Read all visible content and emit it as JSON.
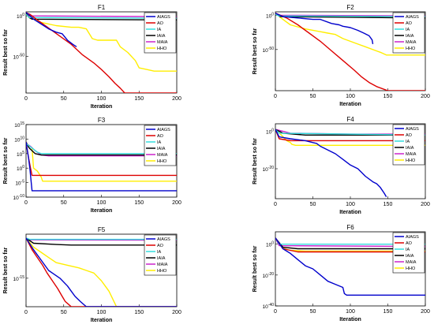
{
  "figure": {
    "ylabel": "Result best so far",
    "xlabel": "Iteration"
  },
  "series_styles": [
    {
      "name": "AIAGS",
      "color": "#0000cc"
    },
    {
      "name": "AO",
      "color": "#dd0000"
    },
    {
      "name": "IA",
      "color": "#33dddd"
    },
    {
      "name": "IAIA",
      "color": "#000000"
    },
    {
      "name": "MAIA",
      "color": "#cc22cc"
    },
    {
      "name": "HHO",
      "color": "#ffee00"
    }
  ],
  "chart_data": [
    {
      "type": "line",
      "title": "F1",
      "xlabel": "Iteration",
      "ylabel": "Result best so far",
      "xlim": [
        0,
        200
      ],
      "xticks": [
        0,
        50,
        100,
        150,
        200
      ],
      "yscale": "log",
      "ylim_exp": [
        -95,
        5
      ],
      "yticks": [
        {
          "exp": 0,
          "label": "10",
          "sup": "0"
        },
        {
          "exp": -50,
          "label": "10",
          "sup": "-50"
        }
      ],
      "legend": "top-right",
      "series": [
        {
          "name": "AIAGS",
          "x": [
            0,
            3,
            10,
            20,
            30,
            40,
            48,
            55,
            62,
            67
          ],
          "y": [
            4,
            2,
            -4,
            -10,
            -16,
            -20,
            -22,
            -30,
            -35,
            -38
          ]
        },
        {
          "name": "AO",
          "x": [
            0,
            5,
            15,
            30,
            45,
            60,
            75,
            90,
            100,
            110,
            118,
            125,
            131,
            200
          ],
          "y": [
            4,
            2,
            -5,
            -15,
            -25,
            -35,
            -48,
            -58,
            -66,
            -75,
            -83,
            -89,
            -95,
            -95
          ]
        },
        {
          "name": "IA",
          "x": [
            0,
            4,
            200
          ],
          "y": [
            2,
            -2,
            -3
          ]
        },
        {
          "name": "IAIA",
          "x": [
            0,
            4,
            8,
            200
          ],
          "y": [
            3,
            -2,
            -4,
            -5
          ]
        },
        {
          "name": "MAIA",
          "x": [
            0,
            3,
            200
          ],
          "y": [
            2,
            0,
            -1
          ]
        },
        {
          "name": "HHO",
          "x": [
            0,
            5,
            20,
            40,
            60,
            70,
            80,
            88,
            95,
            120,
            125,
            135,
            145,
            150,
            160,
            170,
            200
          ],
          "y": [
            4,
            -2,
            -8,
            -12,
            -14,
            -14,
            -16,
            -28,
            -30,
            -30,
            -38,
            -45,
            -55,
            -64,
            -66,
            -68,
            -68
          ]
        }
      ]
    },
    {
      "type": "line",
      "title": "F2",
      "xlabel": "Iteration",
      "ylabel": "Result best so far",
      "xlim": [
        0,
        200
      ],
      "xticks": [
        0,
        50,
        100,
        150,
        200
      ],
      "yscale": "log",
      "ylim_exp": [
        -110,
        5
      ],
      "yticks": [
        {
          "exp": 0,
          "label": "10",
          "sup": "0"
        },
        {
          "exp": -50,
          "label": "10",
          "sup": "-50"
        }
      ],
      "legend": "top-right",
      "series": [
        {
          "name": "AIAGS",
          "x": [
            0,
            10,
            30,
            50,
            60,
            75,
            85,
            90,
            100,
            110,
            118,
            125,
            129,
            130
          ],
          "y": [
            3,
            -2,
            -4,
            -6,
            -6,
            -12,
            -14,
            -16,
            -18,
            -22,
            -26,
            -30,
            -36,
            -42
          ]
        },
        {
          "name": "AO",
          "x": [
            0,
            15,
            30,
            45,
            60,
            75,
            90,
            105,
            115,
            125,
            135,
            150,
            200
          ],
          "y": [
            3,
            -4,
            -14,
            -26,
            -38,
            -52,
            -66,
            -80,
            -90,
            -98,
            -104,
            -110,
            -110
          ]
        },
        {
          "name": "IA",
          "x": [
            0,
            4,
            200
          ],
          "y": [
            2,
            -1,
            -2
          ]
        },
        {
          "name": "IAIA",
          "x": [
            0,
            6,
            200
          ],
          "y": [
            3,
            -2,
            -4
          ]
        },
        {
          "name": "MAIA",
          "x": [
            0,
            3,
            200
          ],
          "y": [
            2,
            0,
            -1
          ]
        },
        {
          "name": "HHO",
          "x": [
            0,
            10,
            20,
            40,
            60,
            70,
            80,
            90,
            100,
            110,
            120,
            135,
            140,
            148,
            200
          ],
          "y": [
            3,
            -6,
            -14,
            -20,
            -24,
            -26,
            -28,
            -34,
            -38,
            -42,
            -46,
            -52,
            -54,
            -58,
            -58
          ]
        }
      ]
    },
    {
      "type": "line",
      "title": "F3",
      "xlabel": "Iteration",
      "ylabel": "Result best so far",
      "xlim": [
        0,
        200
      ],
      "xticks": [
        0,
        50,
        100,
        150,
        200
      ],
      "yscale": "log",
      "ylim_exp": [
        -10,
        15
      ],
      "yticks": [
        {
          "exp": 15,
          "label": "10",
          "sup": "15"
        },
        {
          "exp": 10,
          "label": "10",
          "sup": "10"
        },
        {
          "exp": 5,
          "label": "10",
          "sup": "5"
        },
        {
          "exp": 0,
          "label": "10",
          "sup": "0"
        },
        {
          "exp": -5,
          "label": "10",
          "sup": "-5"
        },
        {
          "exp": -10,
          "label": "10",
          "sup": "-10"
        }
      ],
      "legend": "top-right",
      "series": [
        {
          "name": "AIAGS",
          "x": [
            0,
            3,
            5,
            8,
            200
          ],
          "y": [
            9,
            4,
            0,
            -7.8,
            -7.8
          ]
        },
        {
          "name": "AO",
          "x": [
            0,
            3,
            6,
            8,
            200
          ],
          "y": [
            9,
            4,
            0,
            -2.5,
            -2.5
          ]
        },
        {
          "name": "IA",
          "x": [
            0,
            5,
            10,
            15,
            20,
            200
          ],
          "y": [
            8.5,
            7.5,
            6.5,
            5.5,
            5,
            5
          ]
        },
        {
          "name": "IAIA",
          "x": [
            0,
            4,
            8,
            12,
            20,
            200
          ],
          "y": [
            9,
            7,
            6,
            5,
            4.5,
            4.5
          ]
        },
        {
          "name": "MAIA",
          "x": [
            0,
            6,
            12,
            20,
            30,
            200
          ],
          "y": [
            8.5,
            7.5,
            6,
            4.5,
            4.2,
            4.2
          ]
        },
        {
          "name": "HHO",
          "x": [
            0,
            8,
            10,
            15,
            20,
            22,
            200
          ],
          "y": [
            8.5,
            7,
            0,
            -1,
            -3,
            -4.5,
            -4.5
          ]
        }
      ]
    },
    {
      "type": "line",
      "title": "F4",
      "xlabel": "Iteration",
      "ylabel": "Result best so far",
      "xlim": [
        0,
        200
      ],
      "xticks": [
        0,
        50,
        100,
        150,
        200
      ],
      "yscale": "log",
      "ylim_exp": [
        -36,
        4
      ],
      "yticks": [
        {
          "exp": 0,
          "label": "10",
          "sup": "0"
        },
        {
          "exp": -20,
          "label": "10",
          "sup": "-20"
        }
      ],
      "legend": "top-right",
      "series": [
        {
          "name": "AIAGS",
          "x": [
            0,
            5,
            20,
            40,
            50,
            55,
            60,
            70,
            80,
            90,
            100,
            110,
            115,
            120,
            130,
            135,
            140,
            145,
            148
          ],
          "y": [
            1,
            -3,
            -4,
            -5,
            -6,
            -6.5,
            -8,
            -10,
            -12,
            -15,
            -18,
            -20,
            -22,
            -24,
            -27,
            -28,
            -30,
            -33,
            -35
          ]
        },
        {
          "name": "AO",
          "x": [
            0,
            5,
            20,
            200
          ],
          "y": [
            1,
            -4,
            -5,
            -5
          ]
        },
        {
          "name": "IA",
          "x": [
            0,
            5,
            200
          ],
          "y": [
            1,
            -1,
            -2
          ]
        },
        {
          "name": "IAIA",
          "x": [
            0,
            10,
            40,
            200
          ],
          "y": [
            1,
            -1,
            -2,
            -2
          ]
        },
        {
          "name": "MAIA",
          "x": [
            0,
            20,
            100,
            200
          ],
          "y": [
            1,
            -1,
            -1.5,
            -1.5
          ]
        },
        {
          "name": "HHO",
          "x": [
            0,
            8,
            15,
            20,
            22,
            27,
            200
          ],
          "y": [
            1,
            -2,
            -5,
            -6,
            -7,
            -7.5,
            -7.5
          ]
        }
      ]
    },
    {
      "type": "line",
      "title": "F5",
      "xlabel": "Iteration",
      "ylabel": "Result best so far",
      "xlim": [
        0,
        200
      ],
      "xticks": [
        0,
        50,
        100,
        150,
        200
      ],
      "yscale": "log",
      "ylim_exp": [
        -26,
        2
      ],
      "yticks": [
        {
          "exp": -15,
          "label": "10",
          "sup": "-15"
        }
      ],
      "legend": "top-right",
      "series": [
        {
          "name": "AIAGS",
          "x": [
            0,
            10,
            20,
            30,
            35,
            45,
            55,
            60,
            65,
            72,
            80,
            200
          ],
          "y": [
            0.5,
            -4,
            -8,
            -12,
            -13,
            -15,
            -18,
            -20,
            -22,
            -24,
            -26,
            -26
          ]
        },
        {
          "name": "AO",
          "x": [
            0,
            8,
            15,
            22,
            28,
            35,
            42,
            48,
            52,
            56,
            60,
            200
          ],
          "y": [
            0.5,
            -4,
            -7,
            -10,
            -13,
            -16,
            -19,
            -22,
            -24,
            -25,
            -26,
            -26
          ]
        },
        {
          "name": "IA",
          "x": [
            0,
            5,
            200
          ],
          "y": [
            0.5,
            0,
            0
          ]
        },
        {
          "name": "IAIA",
          "x": [
            0,
            10,
            40,
            60,
            200
          ],
          "y": [
            0.5,
            -1.5,
            -2,
            -2.2,
            -2.2
          ]
        },
        {
          "name": "MAIA",
          "x": [
            0,
            5,
            200
          ],
          "y": [
            0.5,
            -0.2,
            -0.3
          ]
        },
        {
          "name": "HHO",
          "x": [
            0,
            10,
            20,
            30,
            40,
            55,
            70,
            80,
            90,
            100,
            105,
            110,
            120,
            200
          ],
          "y": [
            0.5,
            -3,
            -5,
            -7,
            -9,
            -10,
            -11,
            -12,
            -13,
            -16,
            -18,
            -20,
            -26,
            -26
          ]
        }
      ]
    },
    {
      "type": "line",
      "title": "F6",
      "xlabel": "Iteration",
      "ylabel": "Result best so far",
      "xlim": [
        0,
        200
      ],
      "xticks": [
        0,
        50,
        100,
        150,
        200
      ],
      "yscale": "log",
      "ylim_exp": [
        -40,
        8
      ],
      "yticks": [
        {
          "exp": 0,
          "label": "10",
          "sup": "0"
        },
        {
          "exp": -20,
          "label": "10",
          "sup": "-20"
        },
        {
          "exp": -40,
          "label": "10",
          "sup": "-40"
        }
      ],
      "legend": "top-right",
      "series": [
        {
          "name": "AIAGS",
          "x": [
            0,
            10,
            20,
            30,
            40,
            50,
            60,
            70,
            80,
            90,
            92,
            95,
            200
          ],
          "y": [
            4,
            -3,
            -6,
            -10,
            -14,
            -16,
            -20,
            -24,
            -26,
            -28,
            -32,
            -33,
            -33
          ]
        },
        {
          "name": "AO",
          "x": [
            0,
            10,
            30,
            200
          ],
          "y": [
            4,
            -3,
            -5,
            -5
          ]
        },
        {
          "name": "IA",
          "x": [
            0,
            5,
            200
          ],
          "y": [
            4,
            0,
            0
          ]
        },
        {
          "name": "IAIA",
          "x": [
            0,
            10,
            30,
            200
          ],
          "y": [
            4,
            -2,
            -3,
            -3
          ]
        },
        {
          "name": "MAIA",
          "x": [
            0,
            5,
            200
          ],
          "y": [
            4,
            -1,
            -1.5
          ]
        },
        {
          "name": "HHO",
          "x": [
            0,
            6,
            12,
            20,
            40,
            200
          ],
          "y": [
            4,
            0,
            -3,
            -4,
            -4.5,
            -4.5
          ]
        }
      ]
    }
  ]
}
